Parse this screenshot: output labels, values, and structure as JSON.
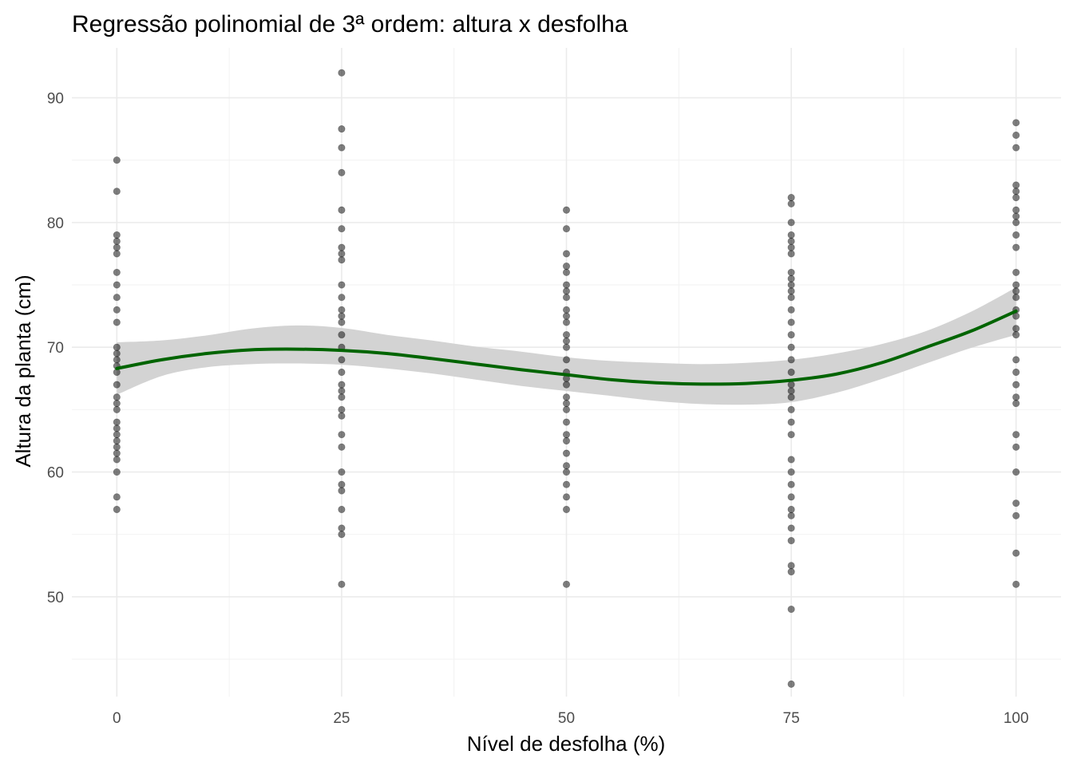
{
  "chart_data": {
    "type": "scatter",
    "title": "Regressão polinomial de 3ª ordem: altura x desfolha",
    "xlabel": "Nível de desfolha (%)",
    "ylabel": "Altura da planta (cm)",
    "xlim": [
      -5,
      105
    ],
    "ylim": [
      42,
      94
    ],
    "x_ticks": [
      0,
      25,
      50,
      75,
      100
    ],
    "x_minor_ticks": [
      12.5,
      37.5,
      62.5,
      87.5
    ],
    "y_ticks": [
      50,
      60,
      70,
      80,
      90
    ],
    "y_minor_ticks": [
      45,
      55,
      65,
      75,
      85
    ],
    "grid": true,
    "legend": "none",
    "colors": {
      "points": "#000000",
      "points_opacity": 0.5,
      "fit_line": "#006400",
      "ribbon": "#d3d3d3"
    },
    "series": [
      {
        "kind": "points",
        "points": [
          [
            0,
            85
          ],
          [
            0,
            82.5
          ],
          [
            0,
            79
          ],
          [
            0,
            78.5
          ],
          [
            0,
            78
          ],
          [
            0,
            77.5
          ],
          [
            0,
            76
          ],
          [
            0,
            75
          ],
          [
            0,
            74
          ],
          [
            0,
            73
          ],
          [
            0,
            72
          ],
          [
            0,
            70
          ],
          [
            0,
            69.5
          ],
          [
            0,
            69
          ],
          [
            0,
            68.5
          ],
          [
            0,
            68
          ],
          [
            0,
            67
          ],
          [
            0,
            66
          ],
          [
            0,
            65.5
          ],
          [
            0,
            65
          ],
          [
            0,
            64
          ],
          [
            0,
            63.5
          ],
          [
            0,
            63
          ],
          [
            0,
            62.5
          ],
          [
            0,
            62
          ],
          [
            0,
            61.5
          ],
          [
            0,
            61
          ],
          [
            0,
            60
          ],
          [
            0,
            58
          ],
          [
            0,
            57
          ],
          [
            25,
            92
          ],
          [
            25,
            87.5
          ],
          [
            25,
            86
          ],
          [
            25,
            84
          ],
          [
            25,
            81
          ],
          [
            25,
            79.5
          ],
          [
            25,
            78
          ],
          [
            25,
            77.5
          ],
          [
            25,
            77
          ],
          [
            25,
            75
          ],
          [
            25,
            74
          ],
          [
            25,
            73
          ],
          [
            25,
            72.5
          ],
          [
            25,
            72
          ],
          [
            25,
            71
          ],
          [
            25,
            70
          ],
          [
            25,
            69
          ],
          [
            25,
            68
          ],
          [
            25,
            67
          ],
          [
            25,
            66.5
          ],
          [
            25,
            66
          ],
          [
            25,
            65
          ],
          [
            25,
            64.5
          ],
          [
            25,
            63
          ],
          [
            25,
            62
          ],
          [
            25,
            60
          ],
          [
            25,
            59
          ],
          [
            25,
            58.5
          ],
          [
            25,
            57
          ],
          [
            25,
            55.5
          ],
          [
            25,
            55
          ],
          [
            25,
            51
          ],
          [
            50,
            81
          ],
          [
            50,
            79.5
          ],
          [
            50,
            77.5
          ],
          [
            50,
            76.5
          ],
          [
            50,
            76
          ],
          [
            50,
            75
          ],
          [
            50,
            74.5
          ],
          [
            50,
            74
          ],
          [
            50,
            73
          ],
          [
            50,
            72.5
          ],
          [
            50,
            72
          ],
          [
            50,
            71
          ],
          [
            50,
            70.5
          ],
          [
            50,
            70
          ],
          [
            50,
            69
          ],
          [
            50,
            68
          ],
          [
            50,
            67.5
          ],
          [
            50,
            67
          ],
          [
            50,
            66
          ],
          [
            50,
            65.5
          ],
          [
            50,
            65
          ],
          [
            50,
            64
          ],
          [
            50,
            63
          ],
          [
            50,
            62.5
          ],
          [
            50,
            61.5
          ],
          [
            50,
            60.5
          ],
          [
            50,
            60
          ],
          [
            50,
            59
          ],
          [
            50,
            58
          ],
          [
            50,
            57
          ],
          [
            50,
            51
          ],
          [
            75,
            82
          ],
          [
            75,
            81.5
          ],
          [
            75,
            80
          ],
          [
            75,
            79
          ],
          [
            75,
            78.5
          ],
          [
            75,
            78
          ],
          [
            75,
            77.5
          ],
          [
            75,
            76
          ],
          [
            75,
            75.5
          ],
          [
            75,
            75
          ],
          [
            75,
            74.5
          ],
          [
            75,
            74
          ],
          [
            75,
            73
          ],
          [
            75,
            72
          ],
          [
            75,
            71
          ],
          [
            75,
            70
          ],
          [
            75,
            69
          ],
          [
            75,
            68
          ],
          [
            75,
            67
          ],
          [
            75,
            66.5
          ],
          [
            75,
            66
          ],
          [
            75,
            65
          ],
          [
            75,
            64
          ],
          [
            75,
            63
          ],
          [
            75,
            61
          ],
          [
            75,
            60
          ],
          [
            75,
            59
          ],
          [
            75,
            58
          ],
          [
            75,
            57
          ],
          [
            75,
            56.5
          ],
          [
            75,
            55.5
          ],
          [
            75,
            54.5
          ],
          [
            75,
            52.5
          ],
          [
            75,
            52
          ],
          [
            75,
            49
          ],
          [
            75,
            43
          ],
          [
            100,
            88
          ],
          [
            100,
            87
          ],
          [
            100,
            86
          ],
          [
            100,
            83
          ],
          [
            100,
            82.5
          ],
          [
            100,
            82
          ],
          [
            100,
            81
          ],
          [
            100,
            80.5
          ],
          [
            100,
            80
          ],
          [
            100,
            79
          ],
          [
            100,
            78
          ],
          [
            100,
            76
          ],
          [
            100,
            75
          ],
          [
            100,
            74.5
          ],
          [
            100,
            74
          ],
          [
            100,
            73
          ],
          [
            100,
            72.5
          ],
          [
            100,
            71.5
          ],
          [
            100,
            71
          ],
          [
            100,
            69
          ],
          [
            100,
            68
          ],
          [
            100,
            67
          ],
          [
            100,
            66
          ],
          [
            100,
            65.5
          ],
          [
            100,
            63
          ],
          [
            100,
            62
          ],
          [
            100,
            60
          ],
          [
            100,
            57.5
          ],
          [
            100,
            56.5
          ],
          [
            100,
            53.5
          ],
          [
            100,
            51
          ]
        ]
      },
      {
        "kind": "fit",
        "x": [
          0,
          5,
          10,
          15,
          20,
          25,
          30,
          35,
          40,
          45,
          50,
          55,
          60,
          65,
          70,
          75,
          80,
          85,
          90,
          95,
          100
        ],
        "y": [
          68.3,
          69.0,
          69.5,
          69.8,
          69.85,
          69.75,
          69.5,
          69.1,
          68.65,
          68.2,
          67.8,
          67.4,
          67.15,
          67.05,
          67.1,
          67.35,
          67.85,
          68.75,
          70.0,
          71.3,
          72.9
        ],
        "lower": [
          66.2,
          67.7,
          68.4,
          68.65,
          68.7,
          68.6,
          68.3,
          67.9,
          67.4,
          66.9,
          66.5,
          66.1,
          65.7,
          65.45,
          65.4,
          65.6,
          66.35,
          67.45,
          68.7,
          69.95,
          71.0
        ],
        "upper": [
          70.4,
          70.55,
          70.95,
          71.5,
          71.75,
          71.55,
          71.0,
          70.55,
          70.05,
          69.65,
          69.2,
          68.9,
          68.75,
          68.65,
          68.75,
          69.0,
          69.5,
          70.25,
          71.3,
          72.85,
          74.8
        ]
      }
    ]
  }
}
